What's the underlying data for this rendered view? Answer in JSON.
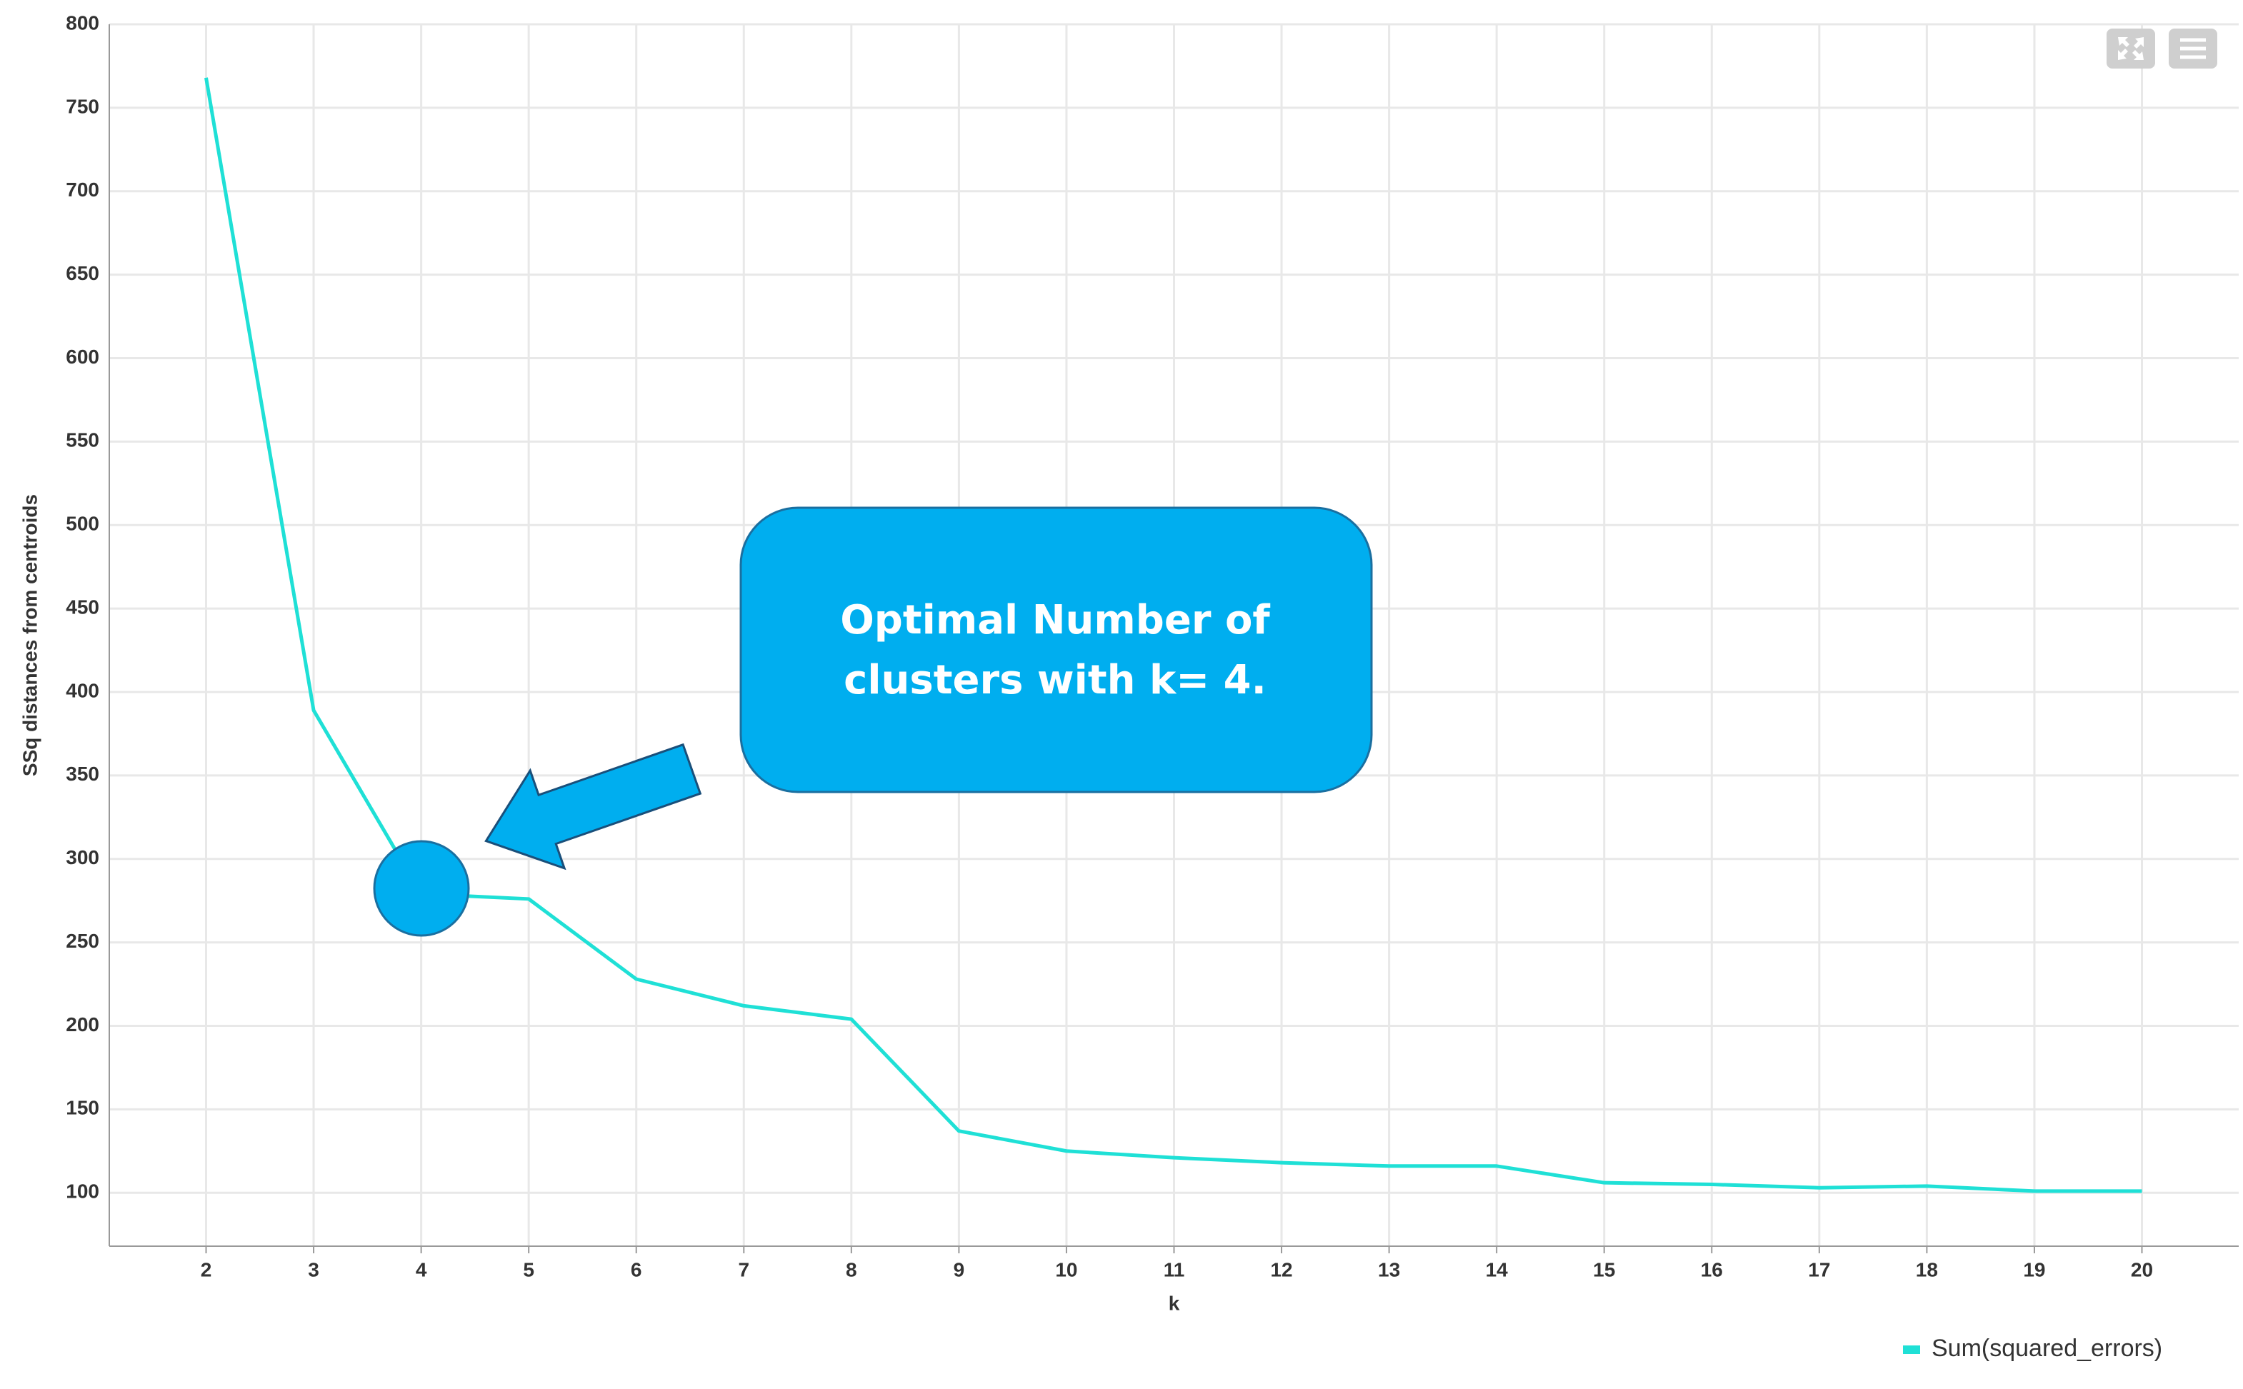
{
  "chart_data": {
    "type": "line",
    "x": [
      2,
      3,
      4,
      5,
      6,
      7,
      8,
      9,
      10,
      11,
      12,
      13,
      14,
      15,
      16,
      17,
      18,
      19,
      20
    ],
    "series": [
      {
        "name": "Sum(squared_errors)",
        "color": "#1fe0d6",
        "values": [
          768,
          389,
          279,
          276,
          228,
          212,
          204,
          137,
          125,
          121,
          118,
          116,
          116,
          106,
          105,
          103,
          104,
          101,
          101
        ]
      }
    ],
    "xlim": [
      1.1,
      20.9
    ],
    "xticks": [
      2,
      3,
      4,
      5,
      6,
      7,
      8,
      9,
      10,
      11,
      12,
      13,
      14,
      15,
      16,
      17,
      18,
      19,
      20
    ],
    "ylim": [
      68,
      800
    ],
    "yticks": [
      100,
      150,
      200,
      250,
      300,
      350,
      400,
      450,
      500,
      550,
      600,
      650,
      700,
      750,
      800
    ],
    "xlabel": "k",
    "ylabel": "SSq distances from centroids",
    "annotation": [
      "Optimal Number of",
      "clusters with k= 4."
    ],
    "grid": true,
    "legend": "bottom-right"
  }
}
